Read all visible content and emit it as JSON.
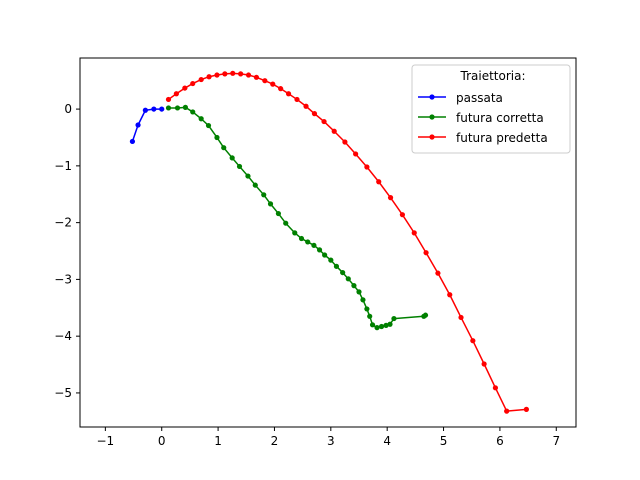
{
  "chart_data": {
    "type": "line",
    "title": "",
    "xlabel": "",
    "ylabel": "",
    "xlim": [
      -1.45,
      7.35
    ],
    "ylim": [
      -5.6,
      0.9
    ],
    "xticks": [
      -1,
      0,
      1,
      2,
      3,
      4,
      5,
      6,
      7
    ],
    "yticks": [
      0,
      -1,
      -2,
      -3,
      -4,
      -5
    ],
    "grid": false,
    "legend": {
      "title": "Traiettoria:",
      "placement": "top-right"
    },
    "series": [
      {
        "name": "passata",
        "color": "#0000ff",
        "marker": "circle",
        "points": [
          [
            -0.52,
            -0.57
          ],
          [
            -0.42,
            -0.28
          ],
          [
            -0.29,
            -0.02
          ],
          [
            -0.14,
            0.0
          ],
          [
            0.0,
            0.0
          ]
        ]
      },
      {
        "name": "futura corretta",
        "color": "#008000",
        "marker": "circle",
        "points": [
          [
            0.12,
            0.02
          ],
          [
            0.28,
            0.02
          ],
          [
            0.42,
            0.03
          ],
          [
            0.55,
            -0.05
          ],
          [
            0.7,
            -0.17
          ],
          [
            0.83,
            -0.29
          ],
          [
            0.98,
            -0.5
          ],
          [
            1.1,
            -0.68
          ],
          [
            1.25,
            -0.86
          ],
          [
            1.38,
            -1.01
          ],
          [
            1.53,
            -1.18
          ],
          [
            1.66,
            -1.34
          ],
          [
            1.81,
            -1.51
          ],
          [
            1.93,
            -1.67
          ],
          [
            2.07,
            -1.84
          ],
          [
            2.2,
            -2.01
          ],
          [
            2.36,
            -2.18
          ],
          [
            2.48,
            -2.28
          ],
          [
            2.59,
            -2.34
          ],
          [
            2.7,
            -2.4
          ],
          [
            2.8,
            -2.48
          ],
          [
            2.89,
            -2.57
          ],
          [
            3.0,
            -2.66
          ],
          [
            3.1,
            -2.77
          ],
          [
            3.21,
            -2.88
          ],
          [
            3.31,
            -2.99
          ],
          [
            3.41,
            -3.11
          ],
          [
            3.5,
            -3.22
          ],
          [
            3.57,
            -3.36
          ],
          [
            3.64,
            -3.52
          ],
          [
            3.69,
            -3.65
          ],
          [
            3.74,
            -3.8
          ],
          [
            3.82,
            -3.85
          ],
          [
            3.9,
            -3.83
          ],
          [
            3.98,
            -3.81
          ],
          [
            4.05,
            -3.79
          ],
          [
            4.12,
            -3.69
          ],
          [
            4.65,
            -3.65
          ],
          [
            4.68,
            -3.63
          ]
        ]
      },
      {
        "name": "futura predetta",
        "color": "#ff0000",
        "marker": "circle",
        "points": [
          [
            0.12,
            0.17
          ],
          [
            0.26,
            0.27
          ],
          [
            0.41,
            0.37
          ],
          [
            0.55,
            0.45
          ],
          [
            0.7,
            0.52
          ],
          [
            0.84,
            0.57
          ],
          [
            0.98,
            0.6
          ],
          [
            1.12,
            0.62
          ],
          [
            1.26,
            0.63
          ],
          [
            1.4,
            0.62
          ],
          [
            1.54,
            0.6
          ],
          [
            1.68,
            0.56
          ],
          [
            1.83,
            0.5
          ],
          [
            1.97,
            0.44
          ],
          [
            2.11,
            0.36
          ],
          [
            2.25,
            0.27
          ],
          [
            2.4,
            0.17
          ],
          [
            2.56,
            0.05
          ],
          [
            2.71,
            -0.08
          ],
          [
            2.88,
            -0.22
          ],
          [
            3.06,
            -0.39
          ],
          [
            3.25,
            -0.58
          ],
          [
            3.44,
            -0.79
          ],
          [
            3.64,
            -1.02
          ],
          [
            3.85,
            -1.28
          ],
          [
            4.06,
            -1.56
          ],
          [
            4.27,
            -1.86
          ],
          [
            4.48,
            -2.18
          ],
          [
            4.69,
            -2.53
          ],
          [
            4.9,
            -2.89
          ],
          [
            5.11,
            -3.27
          ],
          [
            5.31,
            -3.67
          ],
          [
            5.52,
            -4.08
          ],
          [
            5.72,
            -4.49
          ],
          [
            5.92,
            -4.91
          ],
          [
            6.12,
            -5.32
          ],
          [
            6.47,
            -5.29
          ]
        ]
      }
    ]
  }
}
